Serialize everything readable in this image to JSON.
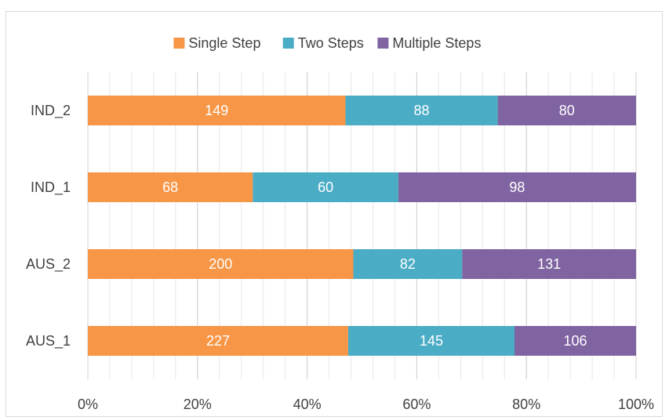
{
  "chart_data": {
    "type": "bar",
    "orientation": "horizontal",
    "stacking": "percent",
    "categories": [
      "IND_2",
      "IND_1",
      "AUS_2",
      "AUS_1"
    ],
    "series": [
      {
        "name": "Single Step",
        "color": "#F79646",
        "values": [
          149,
          68,
          200,
          227
        ]
      },
      {
        "name": "Two Steps",
        "color": "#4BACC6",
        "values": [
          88,
          60,
          82,
          145
        ]
      },
      {
        "name": "Multiple Steps",
        "color": "#8064A2",
        "values": [
          80,
          98,
          131,
          106
        ]
      }
    ],
    "x_ticks": [
      "0%",
      "20%",
      "40%",
      "60%",
      "80%",
      "100%"
    ],
    "xlim": [
      0,
      100
    ],
    "grid": "vertical",
    "legend_position": "top",
    "data_labels": true
  }
}
